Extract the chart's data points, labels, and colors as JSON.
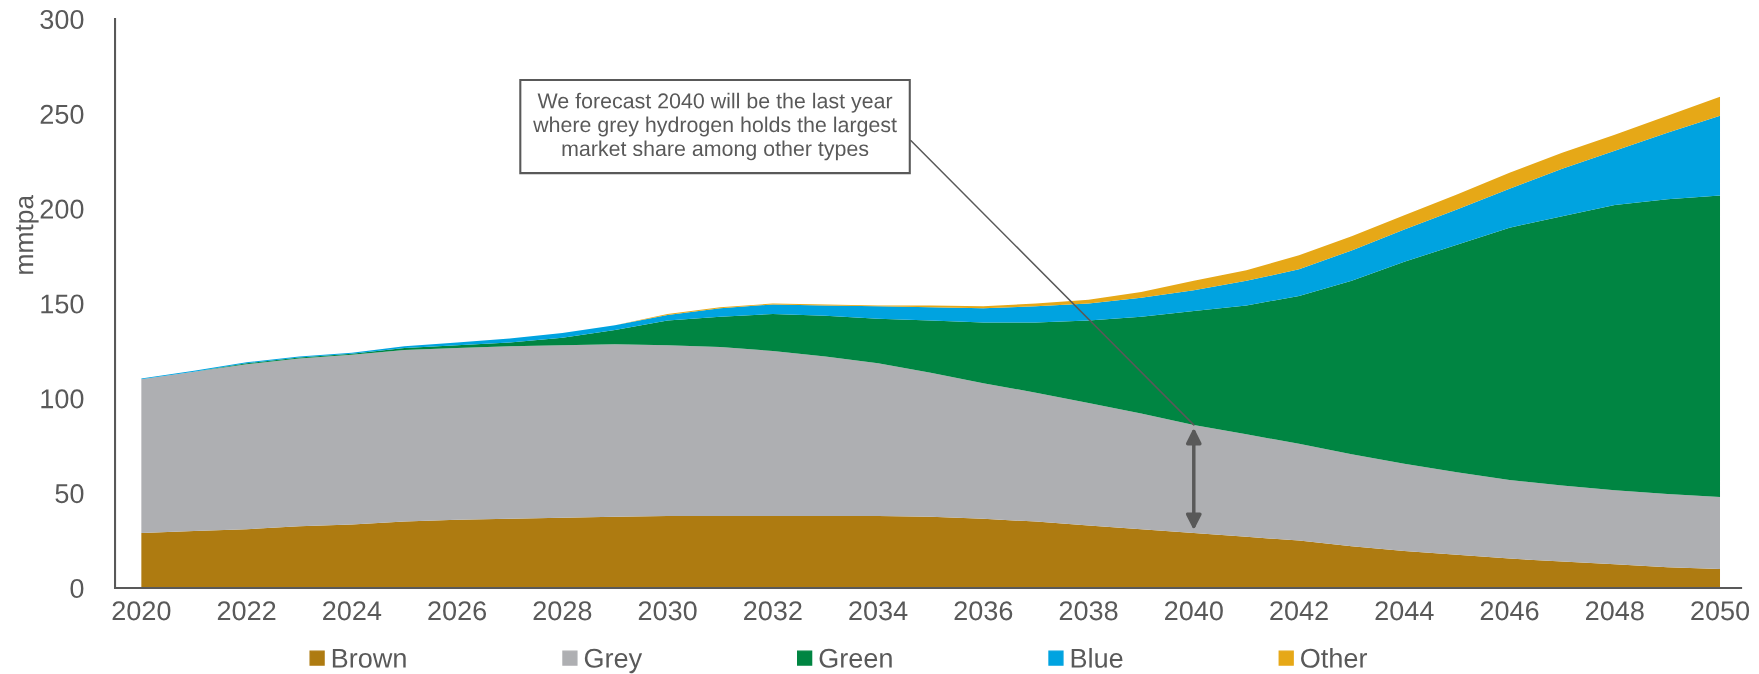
{
  "chart_data": {
    "type": "area",
    "stacked": true,
    "x": [
      2020,
      2021,
      2022,
      2023,
      2024,
      2025,
      2026,
      2027,
      2028,
      2029,
      2030,
      2031,
      2032,
      2033,
      2034,
      2035,
      2036,
      2037,
      2038,
      2039,
      2040,
      2041,
      2042,
      2043,
      2044,
      2045,
      2046,
      2047,
      2048,
      2049,
      2050
    ],
    "series": [
      {
        "name": "Brown",
        "color": "#ae7b11",
        "values": [
          29,
          30,
          31,
          32.5,
          33.5,
          35,
          36,
          36.5,
          37,
          37.5,
          38,
          38,
          38,
          38,
          38,
          37.5,
          36.5,
          35,
          33,
          31,
          29,
          27,
          25,
          22,
          19.5,
          17.5,
          15.5,
          14,
          12.5,
          11,
          10
        ]
      },
      {
        "name": "Grey",
        "color": "#aeafb2",
        "values": [
          81,
          84,
          87,
          88.5,
          89.5,
          90.5,
          90.5,
          91,
          91,
          91,
          90,
          89,
          87,
          84,
          80.5,
          76,
          71.5,
          68,
          64.5,
          61,
          57,
          54,
          51,
          48.5,
          46,
          43.5,
          41.5,
          40,
          39,
          38.5,
          38
        ]
      },
      {
        "name": "Green",
        "color": "#008542",
        "values": [
          0,
          0,
          0.5,
          0.5,
          0.5,
          1,
          1.5,
          2,
          4,
          7.5,
          13,
          16,
          19.5,
          21.5,
          23.5,
          27.5,
          32,
          37,
          43.5,
          51,
          60,
          68,
          78,
          91.5,
          106.5,
          120,
          133,
          142,
          150.5,
          155.5,
          159
        ]
      },
      {
        "name": "Blue",
        "color": "#00a3e0",
        "values": [
          0.5,
          0.5,
          0.5,
          0.5,
          0.5,
          1,
          1.5,
          2,
          2.5,
          2.5,
          3,
          4.5,
          5,
          5.5,
          6.5,
          7,
          7.5,
          8.5,
          9,
          10,
          11,
          13,
          14,
          16,
          17,
          18.5,
          20.5,
          25,
          28.5,
          35,
          42
        ]
      },
      {
        "name": "Other",
        "color": "#e6a817",
        "values": [
          0,
          0,
          0,
          0,
          0,
          0,
          0,
          0,
          0,
          0,
          0.5,
          0.5,
          0.5,
          0.5,
          0.5,
          1,
          1,
          1.5,
          2,
          3,
          5,
          5.5,
          7.5,
          7.5,
          7.5,
          8,
          8.5,
          8.5,
          8.5,
          9,
          10
        ]
      }
    ],
    "ylabel": "mmtpa",
    "xlim": [
      2019.5,
      2050.4
    ],
    "xticks": [
      2020,
      2022,
      2024,
      2026,
      2028,
      2030,
      2032,
      2034,
      2036,
      2038,
      2040,
      2042,
      2044,
      2046,
      2048,
      2050
    ],
    "ylim": [
      0,
      300
    ],
    "yticks": [
      0,
      50,
      100,
      150,
      200,
      250,
      300
    ],
    "annotations": [
      {
        "text": "We forecast 2040 will be the last year\nwhere grey hydrogen holds the largest\nmarket share among other types",
        "x": 2040,
        "y": 86
      }
    ],
    "legend": "bottom"
  }
}
